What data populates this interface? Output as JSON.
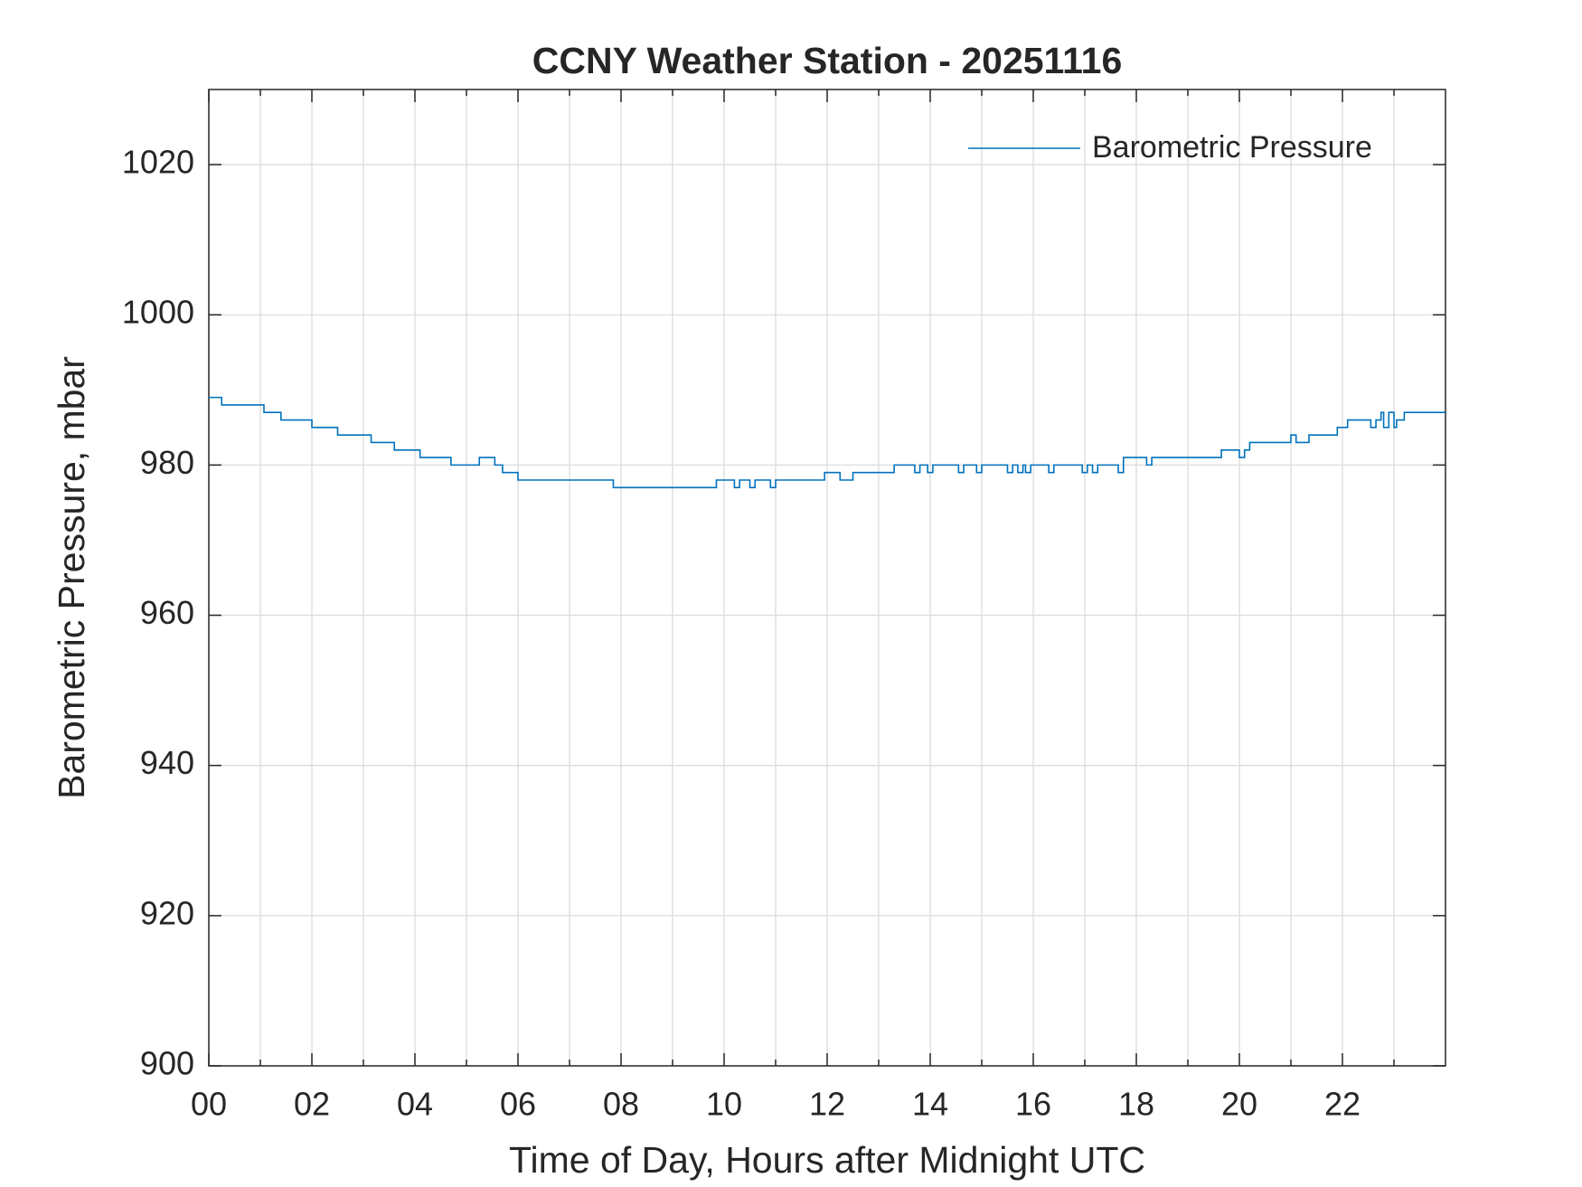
{
  "chart_data": {
    "type": "line",
    "title": "CCNY Weather Station - 20251116",
    "xlabel": "Time of Day, Hours after Midnight UTC",
    "ylabel": "Barometric Pressure, mbar",
    "xlim": [
      0,
      24
    ],
    "ylim": [
      900,
      1030
    ],
    "xticks": [
      {
        "value": 0,
        "label": "00"
      },
      {
        "value": 2,
        "label": "02"
      },
      {
        "value": 4,
        "label": "04"
      },
      {
        "value": 6,
        "label": "06"
      },
      {
        "value": 8,
        "label": "08"
      },
      10,
      12,
      14,
      16,
      18,
      20,
      22
    ],
    "xminorticks": [
      1,
      3,
      5,
      7,
      9,
      11,
      13,
      15,
      17,
      19,
      21,
      23
    ],
    "yticks": [
      900,
      920,
      940,
      960,
      980,
      1000,
      1020
    ],
    "grid": true,
    "legend": "northeast",
    "x": [
      0,
      0.25,
      0.25,
      1.07,
      1.07,
      1.4,
      1.4,
      2.0,
      2.0,
      2.5,
      2.5,
      3.15,
      3.15,
      3.6,
      3.6,
      4.1,
      4.1,
      4.7,
      4.7,
      5.25,
      5.25,
      5.55,
      5.55,
      5.7,
      5.7,
      6.0,
      6.0,
      7.85,
      7.85,
      9.85,
      9.85,
      10.2,
      10.2,
      10.3,
      10.3,
      10.5,
      10.5,
      10.6,
      10.6,
      10.9,
      10.9,
      11.0,
      11.0,
      11.95,
      11.95,
      12.25,
      12.25,
      12.5,
      12.5,
      13.3,
      13.3,
      13.7,
      13.7,
      13.8,
      13.8,
      13.95,
      13.95,
      14.05,
      14.05,
      14.55,
      14.55,
      14.65,
      14.65,
      14.9,
      14.9,
      15.0,
      15.0,
      15.5,
      15.5,
      15.6,
      15.6,
      15.7,
      15.7,
      15.8,
      15.8,
      15.85,
      15.85,
      15.95,
      15.95,
      16.3,
      16.3,
      16.4,
      16.4,
      16.95,
      16.95,
      17.05,
      17.05,
      17.15,
      17.15,
      17.25,
      17.25,
      17.65,
      17.65,
      17.75,
      17.75,
      18.2,
      18.2,
      18.3,
      18.3,
      19.65,
      19.65,
      20.0,
      20.0,
      20.1,
      20.1,
      20.2,
      20.2,
      21.0,
      21.0,
      21.1,
      21.1,
      21.35,
      21.35,
      21.9,
      21.9,
      22.1,
      22.1,
      22.55,
      22.55,
      22.65,
      22.65,
      22.75,
      22.75,
      22.8,
      22.8,
      22.9,
      22.9,
      23.0,
      23.0,
      23.05,
      23.05,
      23.2,
      23.2,
      24
    ],
    "series": [
      {
        "name": "Barometric Pressure",
        "color": "#0072BD",
        "values": [
          989,
          989,
          988,
          988,
          987,
          987,
          986,
          986,
          985,
          985,
          984,
          984,
          983,
          983,
          982,
          982,
          981,
          981,
          980,
          980,
          981,
          981,
          980,
          980,
          979,
          979,
          978,
          978,
          977,
          977,
          978,
          978,
          977,
          977,
          978,
          978,
          977,
          977,
          978,
          978,
          977,
          977,
          978,
          978,
          979,
          979,
          978,
          978,
          979,
          979,
          980,
          980,
          979,
          979,
          980,
          980,
          979,
          979,
          980,
          980,
          979,
          979,
          980,
          980,
          979,
          979,
          980,
          980,
          979,
          979,
          980,
          980,
          979,
          979,
          980,
          980,
          979,
          979,
          980,
          980,
          979,
          979,
          980,
          980,
          979,
          979,
          980,
          980,
          979,
          979,
          980,
          980,
          979,
          979,
          981,
          981,
          980,
          980,
          981,
          981,
          982,
          982,
          981,
          981,
          982,
          982,
          983,
          983,
          984,
          984,
          983,
          983,
          984,
          984,
          985,
          985,
          986,
          986,
          985,
          985,
          986,
          986,
          987,
          987,
          985,
          985,
          987,
          987,
          985,
          985,
          986,
          986,
          987,
          987
        ]
      }
    ]
  }
}
